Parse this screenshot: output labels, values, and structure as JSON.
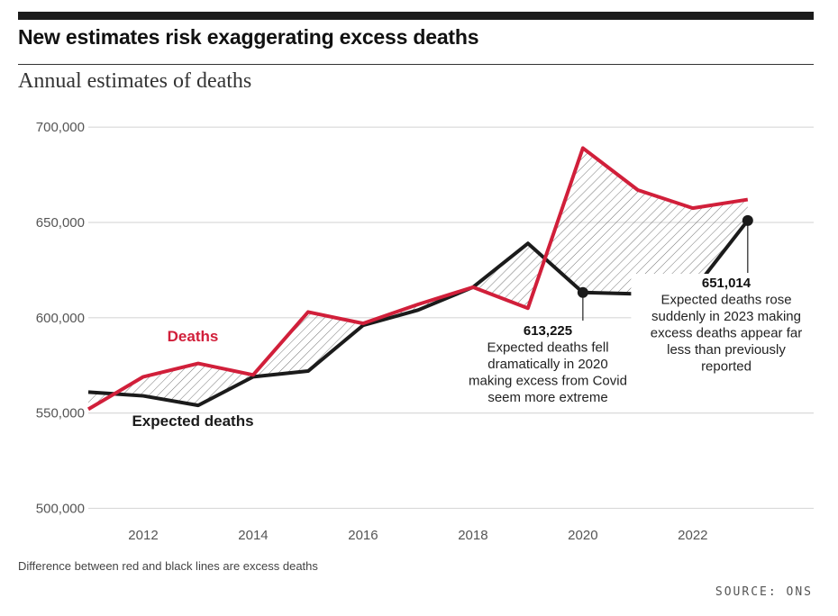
{
  "header": {
    "title": "New estimates risk exaggerating excess deaths",
    "subtitle": "Annual estimates of deaths"
  },
  "footer": {
    "note": "Difference between red and black lines are excess deaths",
    "source": "SOURCE: ONS"
  },
  "colors": {
    "deaths": "#d11f3a",
    "expected": "#1b1b1b",
    "grid": "#d9d9d9",
    "axis_text": "#555555"
  },
  "chart_data": {
    "type": "line",
    "x": [
      2011,
      2012,
      2013,
      2014,
      2015,
      2016,
      2017,
      2018,
      2019,
      2020,
      2021,
      2022,
      2023
    ],
    "xlim": [
      2011,
      2024.2
    ],
    "ylim": [
      495000,
      710000
    ],
    "yticks": [
      500000,
      550000,
      600000,
      650000,
      700000
    ],
    "ytick_labels": [
      "500,000",
      "550,000",
      "600,000",
      "650,000",
      "700,000"
    ],
    "xticks": [
      2012,
      2014,
      2016,
      2018,
      2020,
      2022
    ],
    "xtick_labels": [
      "2012",
      "2014",
      "2016",
      "2018",
      "2020",
      "2022"
    ],
    "grid": true,
    "shaded_difference": true,
    "series": [
      {
        "name": "Deaths",
        "color": "#d11f3a",
        "values": [
          552000,
          569000,
          576000,
          570000,
          603000,
          597000,
          607000,
          616000,
          605000,
          689000,
          667000,
          657500,
          662000
        ]
      },
      {
        "name": "Expected deaths",
        "color": "#1b1b1b",
        "values": [
          561000,
          559000,
          554000,
          569000,
          572000,
          596000,
          604000,
          616000,
          639000,
          613225,
          612500,
          614000,
          651014
        ]
      }
    ],
    "annotations": [
      {
        "value": "613,225",
        "text": [
          "Expected deaths fell",
          "dramatically in 2020",
          "making excess from Covid",
          "seem more extreme"
        ]
      },
      {
        "value": "651,014",
        "text": [
          "Expected deaths rose",
          "suddenly in 2023 making",
          "excess deaths appear far",
          "less than previously",
          "reported"
        ]
      }
    ]
  }
}
